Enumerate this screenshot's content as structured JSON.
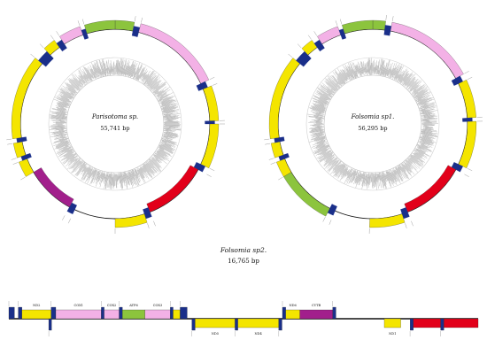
{
  "colors": {
    "pcg_yellow": "#f4e500",
    "rrna_red": "#e2001a",
    "cox_pink": "#f3b1e6",
    "atp_green": "#8cc43d",
    "nad_purple": "#a21f8c",
    "trna_navy": "#1a2f8a",
    "gc_grey": "#9d9d9d",
    "line": "#111111"
  },
  "genomes": [
    {
      "species": "Parisotoma sp.",
      "length_label": "55,741 bp",
      "segments": [
        {
          "from": 0.0,
          "to": 0.03,
          "kind": "atp"
        },
        {
          "from": 0.03,
          "to": 0.04,
          "kind": "trna"
        },
        {
          "from": 0.04,
          "to": 0.18,
          "kind": "cox"
        },
        {
          "from": 0.18,
          "to": 0.19,
          "kind": "trna"
        },
        {
          "from": 0.19,
          "to": 0.245,
          "kind": "pcg"
        },
        {
          "from": 0.245,
          "to": 0.25,
          "kind": "trna"
        },
        {
          "from": 0.25,
          "to": 0.32,
          "kind": "pcg"
        },
        {
          "from": 0.32,
          "to": 0.33,
          "kind": "trna"
        },
        {
          "from": 0.33,
          "to": 0.44,
          "kind": "rrna"
        },
        {
          "from": 0.44,
          "to": 0.45,
          "kind": "trna"
        },
        {
          "from": 0.45,
          "to": 0.5,
          "kind": "pcg"
        },
        {
          "from": 0.57,
          "to": 0.58,
          "kind": "trna"
        },
        {
          "from": 0.58,
          "to": 0.665,
          "kind": "nad"
        },
        {
          "from": 0.665,
          "to": 0.69,
          "kind": "pcg"
        },
        {
          "from": 0.69,
          "to": 0.697,
          "kind": "trna"
        },
        {
          "from": 0.697,
          "to": 0.72,
          "kind": "pcg"
        },
        {
          "from": 0.72,
          "to": 0.727,
          "kind": "trna"
        },
        {
          "from": 0.727,
          "to": 0.86,
          "kind": "pcg"
        },
        {
          "from": 0.86,
          "to": 0.88,
          "kind": "trna"
        },
        {
          "from": 0.88,
          "to": 0.9,
          "kind": "pcg"
        },
        {
          "from": 0.9,
          "to": 0.91,
          "kind": "trna"
        },
        {
          "from": 0.91,
          "to": 0.945,
          "kind": "cox"
        },
        {
          "from": 0.945,
          "to": 0.952,
          "kind": "trna"
        },
        {
          "from": 0.952,
          "to": 1.0,
          "kind": "atp"
        }
      ],
      "ticks": [
        0.03,
        0.04,
        0.18,
        0.19,
        0.245,
        0.25,
        0.32,
        0.33,
        0.44,
        0.45,
        0.5,
        0.57,
        0.58,
        0.665,
        0.69,
        0.697,
        0.72,
        0.727,
        0.86,
        0.88,
        0.9,
        0.91,
        0.945,
        0.952
      ]
    },
    {
      "species": "Folsomia sp1.",
      "length_label": "56,295 bp",
      "segments": [
        {
          "from": 0.0,
          "to": 0.02,
          "kind": "atp"
        },
        {
          "from": 0.02,
          "to": 0.03,
          "kind": "trna"
        },
        {
          "from": 0.03,
          "to": 0.17,
          "kind": "cox"
        },
        {
          "from": 0.17,
          "to": 0.18,
          "kind": "trna"
        },
        {
          "from": 0.18,
          "to": 0.24,
          "kind": "pcg"
        },
        {
          "from": 0.24,
          "to": 0.246,
          "kind": "trna"
        },
        {
          "from": 0.246,
          "to": 0.32,
          "kind": "pcg"
        },
        {
          "from": 0.32,
          "to": 0.33,
          "kind": "trna"
        },
        {
          "from": 0.33,
          "to": 0.44,
          "kind": "rrna"
        },
        {
          "from": 0.44,
          "to": 0.45,
          "kind": "trna"
        },
        {
          "from": 0.45,
          "to": 0.505,
          "kind": "pcg"
        },
        {
          "from": 0.565,
          "to": 0.575,
          "kind": "trna"
        },
        {
          "from": 0.575,
          "to": 0.665,
          "kind": "atp"
        },
        {
          "from": 0.665,
          "to": 0.69,
          "kind": "pcg"
        },
        {
          "from": 0.69,
          "to": 0.697,
          "kind": "trna"
        },
        {
          "from": 0.697,
          "to": 0.72,
          "kind": "pcg"
        },
        {
          "from": 0.72,
          "to": 0.727,
          "kind": "trna"
        },
        {
          "from": 0.727,
          "to": 0.86,
          "kind": "pcg"
        },
        {
          "from": 0.86,
          "to": 0.88,
          "kind": "trna"
        },
        {
          "from": 0.88,
          "to": 0.9,
          "kind": "pcg"
        },
        {
          "from": 0.9,
          "to": 0.91,
          "kind": "trna"
        },
        {
          "from": 0.91,
          "to": 0.945,
          "kind": "cox"
        },
        {
          "from": 0.945,
          "to": 0.952,
          "kind": "trna"
        },
        {
          "from": 0.952,
          "to": 1.0,
          "kind": "atp"
        }
      ],
      "ticks": [
        0.02,
        0.03,
        0.17,
        0.18,
        0.24,
        0.246,
        0.32,
        0.33,
        0.44,
        0.45,
        0.505,
        0.565,
        0.575,
        0.665,
        0.69,
        0.697,
        0.72,
        0.727,
        0.86,
        0.88,
        0.9,
        0.91,
        0.945,
        0.952
      ]
    }
  ],
  "linear": {
    "species": "Folsomia sp2.",
    "length_label": "16,765 bp",
    "upper": [
      {
        "from": 0.0,
        "to": 0.012,
        "kind": "trna"
      },
      {
        "from": 0.02,
        "to": 0.028,
        "kind": "trna"
      },
      {
        "from": 0.028,
        "to": 0.09,
        "kind": "pcg",
        "label": "ND2"
      },
      {
        "from": 0.09,
        "to": 0.1,
        "kind": "trna"
      },
      {
        "from": 0.1,
        "to": 0.197,
        "kind": "cox",
        "label": "COX1"
      },
      {
        "from": 0.197,
        "to": 0.203,
        "kind": "trna"
      },
      {
        "from": 0.203,
        "to": 0.235,
        "kind": "cox",
        "label": "COX2"
      },
      {
        "from": 0.235,
        "to": 0.242,
        "kind": "trna"
      },
      {
        "from": 0.242,
        "to": 0.29,
        "kind": "atp",
        "label": "ATP6"
      },
      {
        "from": 0.29,
        "to": 0.344,
        "kind": "cox",
        "label": "COX3"
      },
      {
        "from": 0.344,
        "to": 0.35,
        "kind": "trna"
      },
      {
        "from": 0.35,
        "to": 0.365,
        "kind": "pcg"
      },
      {
        "from": 0.365,
        "to": 0.38,
        "kind": "trna"
      },
      {
        "from": 0.583,
        "to": 0.59,
        "kind": "trna"
      },
      {
        "from": 0.59,
        "to": 0.62,
        "kind": "pcg",
        "label": "ND6"
      },
      {
        "from": 0.62,
        "to": 0.69,
        "kind": "nad",
        "label": "CYTB"
      },
      {
        "from": 0.69,
        "to": 0.697,
        "kind": "trna"
      }
    ],
    "lower": [
      {
        "from": 0.085,
        "to": 0.091,
        "kind": "trna"
      },
      {
        "from": 0.39,
        "to": 0.397,
        "kind": "trna"
      },
      {
        "from": 0.397,
        "to": 0.482,
        "kind": "pcg",
        "label": "ND5"
      },
      {
        "from": 0.482,
        "to": 0.488,
        "kind": "trna"
      },
      {
        "from": 0.488,
        "to": 0.575,
        "kind": "pcg",
        "label": "ND4"
      },
      {
        "from": 0.575,
        "to": 0.582,
        "kind": "trna"
      },
      {
        "from": 0.8,
        "to": 0.835,
        "kind": "pcg",
        "label": "ND1"
      },
      {
        "from": 0.855,
        "to": 0.862,
        "kind": "trna"
      },
      {
        "from": 0.862,
        "to": 0.92,
        "kind": "rrna"
      },
      {
        "from": 0.92,
        "to": 0.927,
        "kind": "trna"
      },
      {
        "from": 0.927,
        "to": 1.0,
        "kind": "rrna"
      }
    ]
  }
}
